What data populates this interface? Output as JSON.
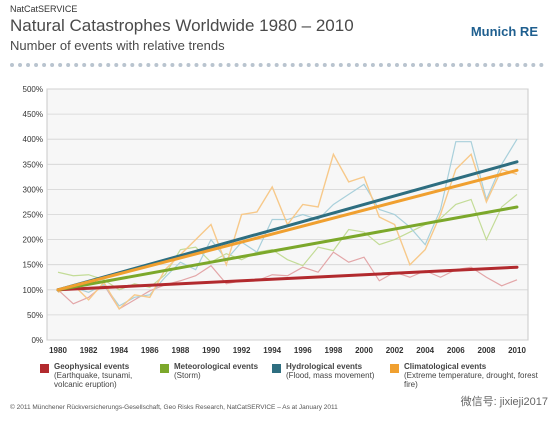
{
  "header": {
    "service": "NatCatSERVICE",
    "title": "Natural Catastrophes Worldwide 1980 – 2010",
    "subtitle": "Number of events with relative trends",
    "logo": "Munich RE"
  },
  "footer": "© 2011 Münchener Rückversicherungs-Gesellschaft, Geo Risks Research, NatCatSERVICE – As at January 2011",
  "watermark": "微信号: jixieji2017",
  "chart_data": {
    "type": "line",
    "title": "Natural Catastrophes Worldwide 1980 – 2010",
    "subtitle": "Number of events with relative trends",
    "xlabel": "",
    "ylabel": "",
    "ylim": [
      0,
      500
    ],
    "yticks": [
      "0%",
      "50%",
      "100%",
      "150%",
      "200%",
      "250%",
      "300%",
      "350%",
      "400%",
      "450%",
      "500%"
    ],
    "xticks": [
      "1980",
      "1982",
      "1984",
      "1986",
      "1988",
      "1990",
      "1992",
      "1994",
      "1996",
      "1998",
      "2000",
      "2002",
      "2004",
      "2006",
      "2008",
      "2010"
    ],
    "grid": true,
    "x": [
      1980,
      1981,
      1982,
      1983,
      1984,
      1985,
      1986,
      1987,
      1988,
      1989,
      1990,
      1991,
      1992,
      1993,
      1994,
      1995,
      1996,
      1997,
      1998,
      1999,
      2000,
      2001,
      2002,
      2003,
      2004,
      2005,
      2006,
      2007,
      2008,
      2009,
      2010
    ],
    "series": [
      {
        "name": "Geophysical events",
        "desc": "(Earthquake, tsunami, volcanic eruption)",
        "color": "#b22a2e",
        "values": [
          100,
          72,
          85,
          110,
          62,
          80,
          98,
          110,
          118,
          128,
          148,
          112,
          118,
          118,
          130,
          128,
          145,
          135,
          175,
          155,
          165,
          118,
          135,
          125,
          138,
          125,
          140,
          145,
          125,
          108,
          120
        ],
        "trend": [
          100,
          145
        ]
      },
      {
        "name": "Meteorological events",
        "desc": "(Storm)",
        "color": "#7ca82b",
        "values": [
          135,
          128,
          130,
          120,
          100,
          112,
          105,
          130,
          180,
          185,
          155,
          172,
          160,
          175,
          180,
          160,
          148,
          185,
          178,
          220,
          215,
          190,
          200,
          215,
          230,
          242,
          270,
          280,
          200,
          265,
          290
        ],
        "trend": [
          100,
          265
        ]
      },
      {
        "name": "Hydrological events",
        "desc": "(Flood, mass movement)",
        "color": "#2e6e80",
        "values": [
          100,
          105,
          95,
          110,
          68,
          85,
          90,
          125,
          155,
          140,
          200,
          160,
          195,
          175,
          240,
          240,
          250,
          240,
          270,
          290,
          310,
          260,
          250,
          225,
          190,
          260,
          395,
          395,
          280,
          350,
          400
        ],
        "trend": [
          100,
          355
        ]
      },
      {
        "name": "Climatological events",
        "desc": "(Extreme temperature, drought, forest fire)",
        "color": "#f0a030",
        "values": [
          95,
          110,
          80,
          115,
          62,
          90,
          85,
          140,
          170,
          200,
          230,
          150,
          250,
          255,
          305,
          230,
          270,
          265,
          370,
          315,
          325,
          245,
          230,
          150,
          180,
          250,
          340,
          370,
          275,
          340,
          330
        ],
        "trend": [
          100,
          338
        ]
      }
    ]
  }
}
